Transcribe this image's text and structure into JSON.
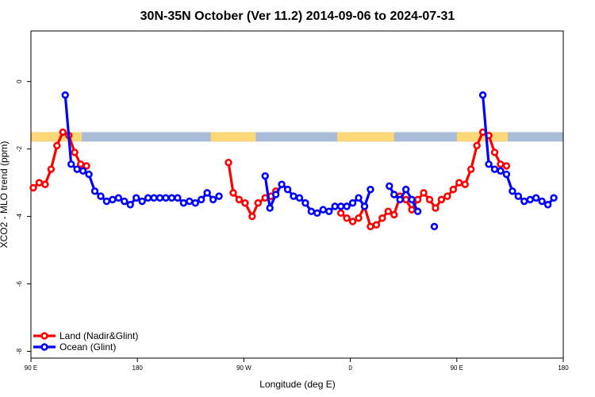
{
  "chart_data": {
    "type": "line",
    "title": "30N-35N October (Ver 11.2)   2014-09-06 to 2024-07-31",
    "xlabel": "Longitude (deg E)",
    "ylabel": "XCO2 - MLO trend (ppm)",
    "xlim": [
      90,
      540
    ],
    "ylim": [
      -8.2,
      1.5
    ],
    "x_ticks": [
      {
        "value": 90,
        "label": "90 E"
      },
      {
        "value": 180,
        "label": "180"
      },
      {
        "value": 270,
        "label": "90 W"
      },
      {
        "value": 360,
        "label": "0"
      },
      {
        "value": 450,
        "label": "90 E"
      },
      {
        "value": 540,
        "label": "180"
      }
    ],
    "y_ticks": [
      {
        "value": 0,
        "label": "0"
      },
      {
        "value": -2,
        "label": "-2"
      },
      {
        "value": -4,
        "label": "-4"
      },
      {
        "value": -6,
        "label": "-6"
      },
      {
        "value": -8,
        "label": "-8"
      }
    ],
    "land_ocean_band": {
      "y_top": -1.5,
      "y_bottom": -1.78,
      "ocean_color": "#a9bcd8",
      "land_color": "#fdd878",
      "land_segments": [
        [
          90,
          133
        ],
        [
          242,
          280
        ],
        [
          349,
          397
        ],
        [
          450,
          493
        ]
      ]
    },
    "legend": {
      "position": "bottom-left"
    },
    "series": [
      {
        "name": "Land (Nadir&Glint)",
        "color": "#ff0000",
        "segments": [
          [
            [
              92,
              -3.15
            ],
            [
              97,
              -3.0
            ],
            [
              102,
              -3.05
            ],
            [
              107,
              -2.6
            ],
            [
              112,
              -1.9
            ],
            [
              117,
              -1.5
            ],
            [
              122,
              -1.6
            ],
            [
              127,
              -2.1
            ],
            [
              132,
              -2.45
            ],
            [
              137,
              -2.5
            ]
          ],
          [
            [
              257,
              -2.4
            ],
            [
              261,
              -3.3
            ],
            [
              266,
              -3.5
            ],
            [
              271,
              -3.6
            ],
            [
              277,
              -4.0
            ],
            [
              282,
              -3.6
            ],
            [
              288,
              -3.45
            ],
            [
              293,
              -3.4
            ],
            [
              297,
              -3.25
            ]
          ],
          [
            [
              352,
              -3.9
            ],
            [
              357,
              -4.05
            ],
            [
              362,
              -4.15
            ],
            [
              367,
              -4.05
            ],
            [
              372,
              -3.7
            ],
            [
              377,
              -4.3
            ],
            [
              382,
              -4.25
            ],
            [
              387,
              -4.05
            ],
            [
              392,
              -3.85
            ],
            [
              397,
              -3.95
            ],
            [
              402,
              -3.4
            ],
            [
              407,
              -3.5
            ],
            [
              412,
              -3.8
            ],
            [
              417,
              -3.5
            ],
            [
              422,
              -3.3
            ],
            [
              427,
              -3.5
            ],
            [
              432,
              -3.75
            ],
            [
              437,
              -3.5
            ],
            [
              442,
              -3.4
            ],
            [
              447,
              -3.2
            ],
            [
              452,
              -3.0
            ],
            [
              457,
              -3.05
            ],
            [
              462,
              -2.6
            ],
            [
              467,
              -1.9
            ],
            [
              472,
              -1.5
            ],
            [
              477,
              -1.6
            ],
            [
              482,
              -2.1
            ],
            [
              487,
              -2.45
            ],
            [
              492,
              -2.5
            ]
          ]
        ]
      },
      {
        "name": "Ocean (Glint)",
        "color": "#0000ff",
        "segments": [
          [
            [
              119,
              -0.4
            ],
            [
              124,
              -2.45
            ],
            [
              129,
              -2.6
            ],
            [
              134,
              -2.65
            ],
            [
              139,
              -2.75
            ],
            [
              144,
              -3.25
            ],
            [
              149,
              -3.4
            ],
            [
              154,
              -3.55
            ],
            [
              159,
              -3.5
            ],
            [
              164,
              -3.45
            ],
            [
              169,
              -3.55
            ],
            [
              174,
              -3.65
            ],
            [
              179,
              -3.45
            ],
            [
              184,
              -3.55
            ],
            [
              189,
              -3.45
            ],
            [
              194,
              -3.45
            ],
            [
              199,
              -3.45
            ],
            [
              204,
              -3.45
            ],
            [
              209,
              -3.45
            ],
            [
              214,
              -3.45
            ],
            [
              219,
              -3.6
            ],
            [
              224,
              -3.55
            ],
            [
              229,
              -3.6
            ],
            [
              234,
              -3.5
            ],
            [
              239,
              -3.3
            ],
            [
              244,
              -3.5
            ],
            [
              249,
              -3.4
            ]
          ],
          [
            [
              288,
              -2.8
            ],
            [
              292,
              -3.75
            ],
            [
              297,
              -3.35
            ],
            [
              302,
              -3.05
            ],
            [
              307,
              -3.2
            ],
            [
              312,
              -3.4
            ],
            [
              317,
              -3.45
            ],
            [
              322,
              -3.6
            ],
            [
              327,
              -3.85
            ],
            [
              332,
              -3.9
            ],
            [
              337,
              -3.8
            ],
            [
              342,
              -3.85
            ],
            [
              347,
              -3.7
            ],
            [
              352,
              -3.7
            ],
            [
              357,
              -3.7
            ],
            [
              362,
              -3.6
            ],
            [
              367,
              -3.45
            ],
            [
              372,
              -3.7
            ],
            [
              377,
              -3.2
            ]
          ],
          [
            [
              393,
              -3.1
            ],
            [
              397,
              -3.35
            ],
            [
              402,
              -3.5
            ],
            [
              407,
              -3.2
            ],
            [
              412,
              -3.5
            ],
            [
              417,
              -3.85
            ]
          ],
          [
            [
              431,
              -4.3
            ]
          ],
          [
            [
              472,
              -0.4
            ],
            [
              477,
              -2.45
            ],
            [
              482,
              -2.6
            ],
            [
              487,
              -2.65
            ],
            [
              492,
              -2.75
            ],
            [
              497,
              -3.25
            ],
            [
              502,
              -3.4
            ],
            [
              507,
              -3.55
            ],
            [
              512,
              -3.5
            ],
            [
              517,
              -3.45
            ],
            [
              522,
              -3.55
            ],
            [
              527,
              -3.65
            ],
            [
              532,
              -3.45
            ]
          ]
        ]
      }
    ]
  }
}
